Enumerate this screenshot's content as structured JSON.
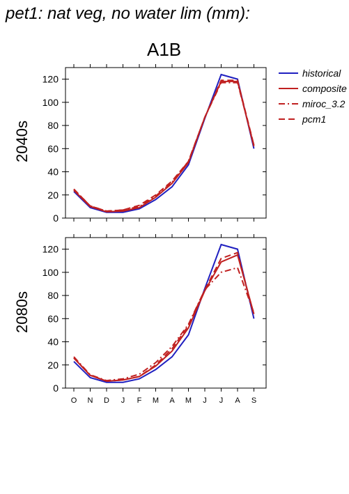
{
  "title": "pet1: nat veg, no water lim (mm):",
  "scenario": "A1B",
  "colors": {
    "historical": "#2020c0",
    "composite": "#c02020",
    "miroc_3.2": "#c02020",
    "pcm1": "#c02020",
    "axis": "#000000"
  },
  "legend": [
    {
      "name": "historical",
      "style": "solid"
    },
    {
      "name": "composite",
      "style": "solid"
    },
    {
      "name": "miroc_3.2",
      "style": "dashdot"
    },
    {
      "name": "pcm1",
      "style": "dash"
    }
  ],
  "chart_data": [
    {
      "type": "line",
      "title": "2040s",
      "ylim": [
        0,
        130
      ],
      "yticks": [
        0,
        20,
        40,
        60,
        80,
        100,
        120
      ],
      "categories": [
        "O",
        "N",
        "D",
        "J",
        "F",
        "M",
        "A",
        "M",
        "J",
        "J",
        "A",
        "S"
      ],
      "series": [
        {
          "name": "historical",
          "values": [
            23,
            9,
            5,
            5,
            8,
            16,
            27,
            46,
            86,
            124,
            120,
            60
          ]
        },
        {
          "name": "composite",
          "values": [
            24,
            10,
            5.5,
            6,
            9,
            18,
            30,
            48,
            87,
            118,
            118,
            62
          ]
        },
        {
          "name": "miroc_3.2",
          "values": [
            25,
            10.5,
            6,
            7,
            10,
            19,
            31,
            49,
            87,
            117,
            117,
            63
          ]
        },
        {
          "name": "pcm1",
          "values": [
            25,
            10.5,
            6,
            7,
            11,
            20,
            32,
            49,
            87,
            119,
            119,
            63
          ]
        }
      ]
    },
    {
      "type": "line",
      "title": "2080s",
      "ylim": [
        0,
        130
      ],
      "yticks": [
        0,
        20,
        40,
        60,
        80,
        100,
        120
      ],
      "categories": [
        "O",
        "N",
        "D",
        "J",
        "F",
        "M",
        "A",
        "M",
        "J",
        "J",
        "A",
        "S"
      ],
      "series": [
        {
          "name": "historical",
          "values": [
            23,
            9,
            5,
            5,
            8,
            16,
            27,
            46,
            86,
            124,
            120,
            60
          ]
        },
        {
          "name": "composite",
          "values": [
            26,
            11,
            6,
            7,
            10,
            19,
            32,
            52,
            84,
            109,
            115,
            64
          ]
        },
        {
          "name": "miroc_3.2",
          "values": [
            27,
            11.5,
            6.5,
            8,
            12,
            22,
            36,
            55,
            85,
            100,
            104,
            65
          ]
        },
        {
          "name": "pcm1",
          "values": [
            26,
            11,
            6,
            7,
            10,
            20,
            34,
            54,
            85,
            112,
            117,
            63
          ]
        }
      ]
    }
  ]
}
